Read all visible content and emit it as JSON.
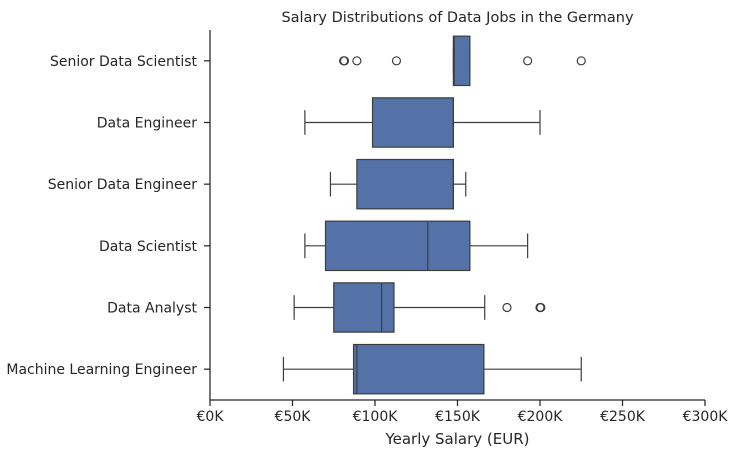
{
  "chart_data": {
    "type": "boxplot",
    "orientation": "horizontal",
    "title": "Salary Distributions of Data Jobs in the Germany",
    "xlabel": "Yearly Salary (EUR)",
    "ylabel": "",
    "xlim": [
      0,
      300000
    ],
    "x_ticks": [
      0,
      50000,
      100000,
      150000,
      200000,
      250000,
      300000
    ],
    "x_tick_labels": [
      "€0K",
      "€50K",
      "€100K",
      "€150K",
      "€200K",
      "€250K",
      "€300K"
    ],
    "grid": false,
    "legend": "none",
    "box_color": "#5572a8",
    "line_color": "#3d3d3d",
    "categories": [
      "Senior Data Scientist",
      "Data Engineer",
      "Senior Data Engineer",
      "Data Scientist",
      "Data Analyst",
      "Machine Learning Engineer"
    ],
    "boxes": [
      {
        "label": "Senior Data Scientist",
        "whisker_low": 147500,
        "q1": 147500,
        "median": 148000,
        "q3": 157500,
        "whisker_high": 157500,
        "outliers": [
          81000,
          81500,
          89000,
          113000,
          192500,
          225000
        ]
      },
      {
        "label": "Data Engineer",
        "whisker_low": 57500,
        "q1": 98500,
        "median": 147500,
        "q3": 147500,
        "whisker_high": 200000,
        "outliers": []
      },
      {
        "label": "Senior Data Engineer",
        "whisker_low": 73000,
        "q1": 89000,
        "median": 147500,
        "q3": 147500,
        "whisker_high": 155000,
        "outliers": []
      },
      {
        "label": "Data Scientist",
        "whisker_low": 57500,
        "q1": 70000,
        "median": 132000,
        "q3": 157500,
        "whisker_high": 192500,
        "outliers": []
      },
      {
        "label": "Data Analyst",
        "whisker_low": 51000,
        "q1": 75000,
        "median": 104000,
        "q3": 111500,
        "whisker_high": 166500,
        "outliers": [
          180000,
          200000,
          200500
        ]
      },
      {
        "label": "Machine Learning Engineer",
        "whisker_low": 44500,
        "q1": 87000,
        "median": 89000,
        "q3": 166000,
        "whisker_high": 225000,
        "outliers": []
      }
    ]
  }
}
